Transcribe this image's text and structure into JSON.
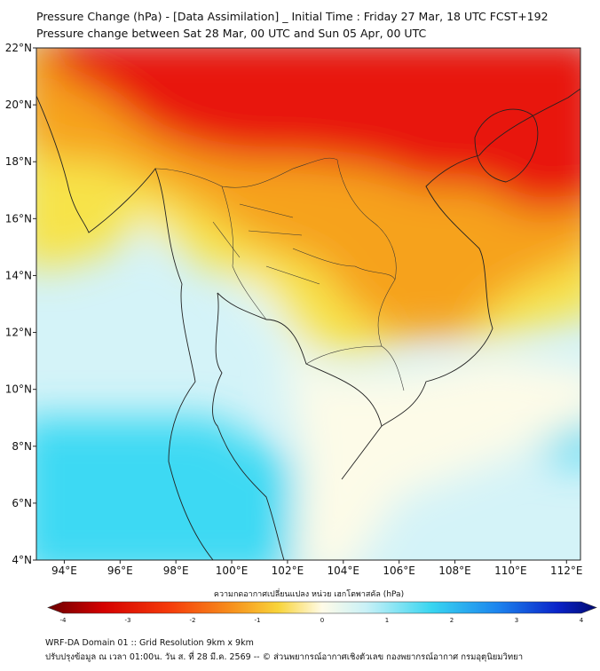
{
  "header": {
    "title_line1": "Pressure Change (hPa) - [Data Assimilation] _ Initial Time : Friday 27 Mar, 18 UTC FCST+192",
    "title_line2": "Pressure change between Sat 28 Mar, 00 UTC and Sun 05 Apr, 00 UTC"
  },
  "map": {
    "lat_labels": [
      "22°N",
      "20°N",
      "18°N",
      "16°N",
      "14°N",
      "12°N",
      "10°N",
      "8°N",
      "6°N",
      "4°N"
    ],
    "lon_labels": [
      "94°E",
      "96°E",
      "98°E",
      "100°E",
      "102°E",
      "104°E",
      "106°E",
      "108°E",
      "110°E",
      "112°E"
    ],
    "lat_range": [
      4,
      22
    ],
    "lon_range": [
      93,
      112.5
    ],
    "colors": {
      "strong_fall": "#e8120e",
      "fall": "#f6a21d",
      "slight_fall": "#f7e34a",
      "neutral": "#fdfbe8",
      "slight_rise": "#d4f3f8",
      "rise": "#3cd9f3"
    }
  },
  "colorbar": {
    "title": "ความกดอากาศเปลี่ยนแปลง หน่วย เฮกโตพาสคัล (hPa)",
    "ticks": [
      "-4",
      "-3",
      "-2",
      "-1",
      "0",
      "1",
      "2",
      "3",
      "4"
    ],
    "range": [
      -4,
      4
    ]
  },
  "footer": {
    "line1": "WRF-DA Domain 01 :: Grid Resolution 9km x 9km",
    "line2": "ปรับปรุงข้อมูล ณ เวลา 01:00น. วัน ส. ที่ 28 มี.ค. 2569 -- © ส่วนพยากรณ์อากาศเชิงตัวเลข กองพยากรณ์อากาศ กรมอุตุนิยมวิทยา"
  }
}
